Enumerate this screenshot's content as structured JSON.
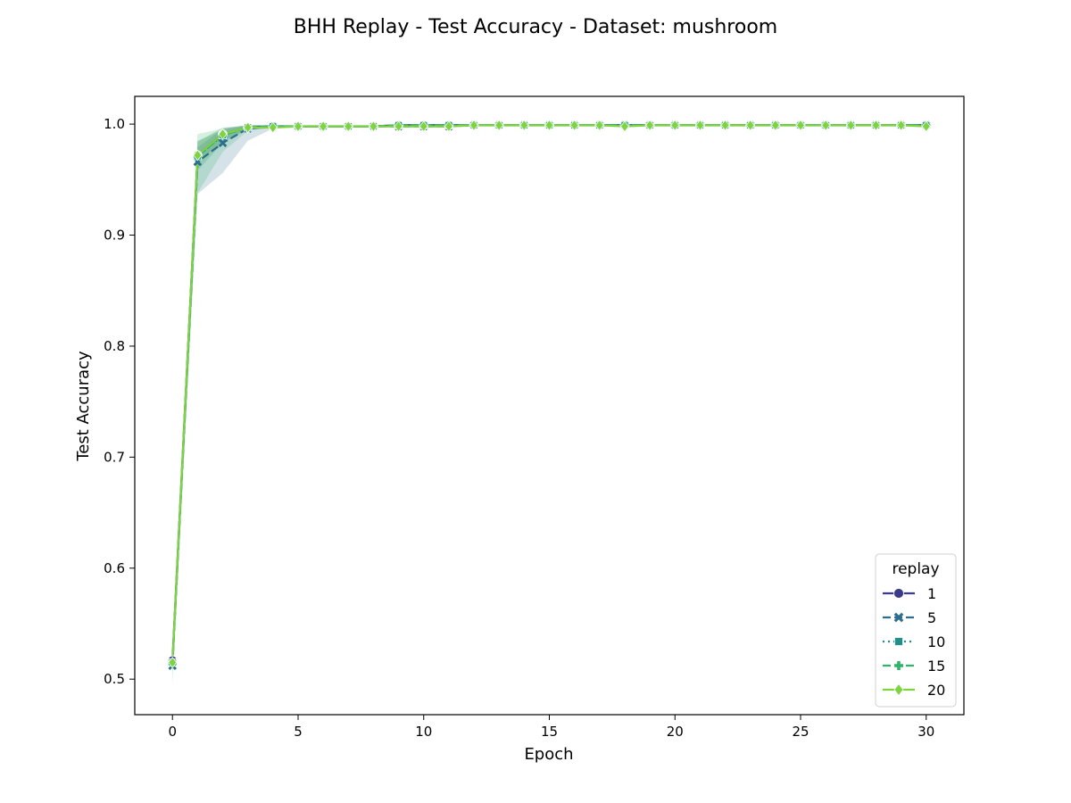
{
  "chart_data": {
    "type": "line",
    "title": "BHH Replay - Test Accuracy - Dataset: mushroom",
    "xlabel": "Epoch",
    "ylabel": "Test Accuracy",
    "xlim": [
      -1.5,
      31.5
    ],
    "ylim": [
      0.468,
      1.025
    ],
    "xticks": [
      0,
      5,
      10,
      15,
      20,
      25,
      30
    ],
    "yticks": [
      0.5,
      0.6,
      0.7,
      0.8,
      0.9,
      1.0
    ],
    "xtick_labels": [
      "0",
      "5",
      "10",
      "15",
      "20",
      "25",
      "30"
    ],
    "ytick_labels": [
      "0.5",
      "0.6",
      "0.7",
      "0.8",
      "0.9",
      "1.0"
    ],
    "grid": false,
    "legend": {
      "title": "replay",
      "position": "bottom-right"
    },
    "x": [
      0,
      1,
      2,
      3,
      4,
      5,
      6,
      7,
      8,
      9,
      10,
      11,
      12,
      13,
      14,
      15,
      16,
      17,
      18,
      19,
      20,
      21,
      22,
      23,
      24,
      25,
      26,
      27,
      28,
      29,
      30
    ],
    "series": [
      {
        "name": "1",
        "color": "#3b3b8a",
        "dash": "solid",
        "marker": "circle",
        "values": [
          0.517,
          0.972,
          0.991,
          0.997,
          0.998,
          0.998,
          0.998,
          0.998,
          0.998,
          0.999,
          0.999,
          0.999,
          0.999,
          0.999,
          0.999,
          0.999,
          0.999,
          0.999,
          0.999,
          0.999,
          0.999,
          0.999,
          0.999,
          0.999,
          0.999,
          0.999,
          0.999,
          0.999,
          0.999,
          0.999,
          0.999
        ],
        "band_lower": [
          0.508,
          0.965,
          0.985,
          0.995,
          0.997,
          0.997,
          0.997,
          0.997,
          0.997,
          0.998,
          0.998,
          0.998,
          0.998,
          0.998,
          0.998,
          0.998,
          0.998,
          0.998,
          0.998,
          0.998,
          0.998,
          0.998,
          0.998,
          0.998,
          0.998,
          0.998,
          0.998,
          0.998,
          0.998,
          0.998,
          0.998
        ],
        "band_upper": [
          0.526,
          0.979,
          0.996,
          0.999,
          0.999,
          0.999,
          0.999,
          0.999,
          0.999,
          1.0,
          1.0,
          1.0,
          1.0,
          1.0,
          1.0,
          1.0,
          1.0,
          1.0,
          1.0,
          1.0,
          1.0,
          1.0,
          1.0,
          1.0,
          1.0,
          1.0,
          1.0,
          1.0,
          1.0,
          1.0,
          1.0
        ]
      },
      {
        "name": "5",
        "color": "#2c6e8e",
        "dash": "dashed",
        "marker": "x",
        "values": [
          0.512,
          0.966,
          0.983,
          0.996,
          0.998,
          0.998,
          0.998,
          0.998,
          0.998,
          0.998,
          0.998,
          0.998,
          0.999,
          0.999,
          0.999,
          0.999,
          0.999,
          0.999,
          0.999,
          0.999,
          0.999,
          0.999,
          0.999,
          0.999,
          0.999,
          0.999,
          0.999,
          0.999,
          0.999,
          0.999,
          0.999
        ],
        "band_lower": [
          0.505,
          0.937,
          0.956,
          0.985,
          0.996,
          0.997,
          0.997,
          0.997,
          0.997,
          0.997,
          0.997,
          0.997,
          0.998,
          0.998,
          0.998,
          0.998,
          0.998,
          0.998,
          0.998,
          0.998,
          0.998,
          0.998,
          0.998,
          0.998,
          0.998,
          0.998,
          0.998,
          0.998,
          0.998,
          0.998,
          0.998
        ],
        "band_upper": [
          0.52,
          0.985,
          0.995,
          0.999,
          0.999,
          0.999,
          0.999,
          0.999,
          0.999,
          0.999,
          0.999,
          0.999,
          1.0,
          1.0,
          1.0,
          1.0,
          1.0,
          1.0,
          1.0,
          1.0,
          1.0,
          1.0,
          1.0,
          1.0,
          1.0,
          1.0,
          1.0,
          1.0,
          1.0,
          1.0,
          1.0
        ]
      },
      {
        "name": "10",
        "color": "#1f8f8a",
        "dash": "dotted",
        "marker": "square",
        "values": [
          0.515,
          0.971,
          0.99,
          0.997,
          0.998,
          0.998,
          0.998,
          0.998,
          0.998,
          0.999,
          0.999,
          0.999,
          0.999,
          0.999,
          0.999,
          0.999,
          0.999,
          0.999,
          0.999,
          0.999,
          0.999,
          0.999,
          0.999,
          0.999,
          0.999,
          0.999,
          0.999,
          0.999,
          0.999,
          0.999,
          0.999
        ],
        "band_lower": [
          0.505,
          0.958,
          0.983,
          0.995,
          0.997,
          0.997,
          0.997,
          0.997,
          0.997,
          0.998,
          0.998,
          0.998,
          0.998,
          0.998,
          0.998,
          0.998,
          0.998,
          0.998,
          0.998,
          0.998,
          0.998,
          0.998,
          0.998,
          0.998,
          0.998,
          0.998,
          0.998,
          0.998,
          0.998,
          0.998,
          0.998
        ],
        "band_upper": [
          0.525,
          0.984,
          0.997,
          0.999,
          0.999,
          0.999,
          0.999,
          0.999,
          0.999,
          1.0,
          1.0,
          1.0,
          1.0,
          1.0,
          1.0,
          1.0,
          1.0,
          1.0,
          1.0,
          1.0,
          1.0,
          1.0,
          1.0,
          1.0,
          1.0,
          1.0,
          1.0,
          1.0,
          1.0,
          1.0,
          1.0
        ]
      },
      {
        "name": "15",
        "color": "#2eb36b",
        "dash": "dashed",
        "marker": "plus",
        "values": [
          0.514,
          0.971,
          0.99,
          0.997,
          0.998,
          0.998,
          0.998,
          0.998,
          0.998,
          0.999,
          0.999,
          0.999,
          0.999,
          0.999,
          0.999,
          0.999,
          0.999,
          0.999,
          0.999,
          0.999,
          0.999,
          0.999,
          0.999,
          0.999,
          0.999,
          0.999,
          0.999,
          0.999,
          0.999,
          0.999,
          0.999
        ],
        "band_lower": [
          0.495,
          0.938,
          0.975,
          0.994,
          0.997,
          0.997,
          0.997,
          0.997,
          0.997,
          0.998,
          0.998,
          0.998,
          0.998,
          0.998,
          0.998,
          0.998,
          0.998,
          0.998,
          0.998,
          0.998,
          0.998,
          0.998,
          0.998,
          0.998,
          0.998,
          0.998,
          0.998,
          0.998,
          0.998,
          0.998,
          0.998
        ],
        "band_upper": [
          0.53,
          0.991,
          0.996,
          0.999,
          0.999,
          0.999,
          0.999,
          0.999,
          0.999,
          1.0,
          1.0,
          1.0,
          1.0,
          1.0,
          1.0,
          1.0,
          1.0,
          1.0,
          1.0,
          1.0,
          1.0,
          1.0,
          1.0,
          1.0,
          1.0,
          1.0,
          1.0,
          1.0,
          1.0,
          1.0,
          1.0
        ]
      },
      {
        "name": "20",
        "color": "#7ed43e",
        "dash": "solid",
        "marker": "diamond",
        "values": [
          0.515,
          0.972,
          0.991,
          0.997,
          0.997,
          0.998,
          0.998,
          0.998,
          0.998,
          0.998,
          0.998,
          0.998,
          0.999,
          0.999,
          0.999,
          0.999,
          0.999,
          0.999,
          0.998,
          0.999,
          0.999,
          0.999,
          0.999,
          0.999,
          0.999,
          0.999,
          0.999,
          0.999,
          0.999,
          0.999,
          0.998
        ],
        "band_lower": [
          0.505,
          0.96,
          0.985,
          0.995,
          0.996,
          0.997,
          0.997,
          0.997,
          0.997,
          0.997,
          0.997,
          0.997,
          0.998,
          0.998,
          0.998,
          0.998,
          0.998,
          0.998,
          0.997,
          0.998,
          0.998,
          0.998,
          0.998,
          0.998,
          0.998,
          0.998,
          0.998,
          0.998,
          0.998,
          0.998,
          0.997
        ],
        "band_upper": [
          0.525,
          0.984,
          0.996,
          0.999,
          0.998,
          0.999,
          0.999,
          0.999,
          0.999,
          0.999,
          0.999,
          0.999,
          1.0,
          1.0,
          1.0,
          1.0,
          1.0,
          1.0,
          0.999,
          1.0,
          1.0,
          1.0,
          1.0,
          1.0,
          1.0,
          1.0,
          1.0,
          1.0,
          1.0,
          1.0,
          0.999
        ]
      }
    ]
  }
}
